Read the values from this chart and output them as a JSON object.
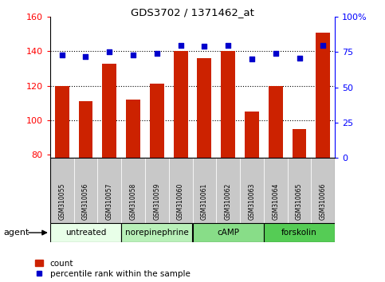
{
  "title": "GDS3702 / 1371462_at",
  "samples": [
    "GSM310055",
    "GSM310056",
    "GSM310057",
    "GSM310058",
    "GSM310059",
    "GSM310060",
    "GSM310061",
    "GSM310062",
    "GSM310063",
    "GSM310064",
    "GSM310065",
    "GSM310066"
  ],
  "counts": [
    120,
    111,
    133,
    112,
    121,
    140,
    136,
    140,
    105,
    120,
    95,
    151
  ],
  "percentile_ranks": [
    73,
    72,
    75,
    73,
    74,
    80,
    79,
    80,
    70,
    74,
    71,
    80
  ],
  "agents": [
    {
      "label": "untreated",
      "start": 0,
      "end": 3,
      "color": "#e8ffe8"
    },
    {
      "label": "norepinephrine",
      "start": 3,
      "end": 6,
      "color": "#b8f0b8"
    },
    {
      "label": "cAMP",
      "start": 6,
      "end": 9,
      "color": "#88dd88"
    },
    {
      "label": "forskolin",
      "start": 9,
      "end": 12,
      "color": "#55cc55"
    }
  ],
  "ylim_left": [
    78,
    160
  ],
  "ylim_right": [
    0,
    100
  ],
  "yticks_left": [
    80,
    100,
    120,
    140,
    160
  ],
  "yticks_right": [
    0,
    25,
    50,
    75,
    100
  ],
  "ytick_labels_right": [
    "0",
    "25",
    "50",
    "75",
    "100%"
  ],
  "bar_color": "#cc2200",
  "dot_color": "#0000cc",
  "bar_bottom": 78,
  "legend_count_color": "#cc2200",
  "legend_dot_color": "#0000cc",
  "sample_row_color": "#c8c8c8"
}
